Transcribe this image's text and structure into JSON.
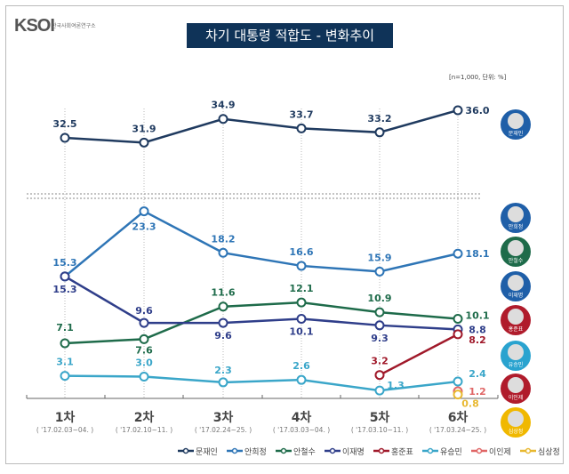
{
  "logo": {
    "text": "KSOI",
    "subtitle": "한국사회여론연구소"
  },
  "chart_data": {
    "type": "line",
    "title": "차기 대통령 적합도 - 변화추이",
    "note": "[n=1,000, 단위: %]",
    "categories": [
      "1차",
      "2차",
      "3차",
      "4차",
      "5차",
      "6차"
    ],
    "category_dates": [
      "( '17.02.03~04. )",
      "( '17.02.10~11. )",
      "( '17.02.24~25. )",
      "( '17.03.03~04. )",
      "( '17.03.10~11. )",
      "( '17.03.24~25. )"
    ],
    "axis_break": true,
    "series": [
      {
        "name": "문재인",
        "color": "#1f3a5f",
        "values": [
          32.5,
          31.9,
          34.9,
          33.7,
          33.2,
          36.0
        ]
      },
      {
        "name": "안희정",
        "color": "#2e75b6",
        "values": [
          15.3,
          23.3,
          18.2,
          16.6,
          15.9,
          18.1
        ]
      },
      {
        "name": "안철수",
        "color": "#1e6b4a",
        "values": [
          7.1,
          7.6,
          11.6,
          12.1,
          10.9,
          10.1
        ]
      },
      {
        "name": "이재명",
        "color": "#2f3e8a",
        "values": [
          15.3,
          9.6,
          9.6,
          10.1,
          9.3,
          8.8
        ]
      },
      {
        "name": "홍준표",
        "color": "#a0192a",
        "values": [
          null,
          null,
          null,
          null,
          3.2,
          8.2
        ]
      },
      {
        "name": "유승민",
        "color": "#3aa6c9",
        "values": [
          3.1,
          3.0,
          2.3,
          2.6,
          1.3,
          2.4
        ]
      },
      {
        "name": "이인제",
        "color": "#e06666",
        "values": [
          null,
          null,
          null,
          null,
          null,
          1.2
        ]
      },
      {
        "name": "심상정",
        "color": "#e8b830",
        "values": [
          null,
          null,
          null,
          null,
          null,
          0.8
        ]
      }
    ],
    "avatars": [
      {
        "name": "문재인",
        "color": "#1f5fa8"
      },
      {
        "name": "안희정",
        "color": "#1f5fa8"
      },
      {
        "name": "안철수",
        "color": "#1e6b4a"
      },
      {
        "name": "이재명",
        "color": "#1f5fa8"
      },
      {
        "name": "홍준표",
        "color": "#b01c2c"
      },
      {
        "name": "유승민",
        "color": "#2aa3cf"
      },
      {
        "name": "이인제",
        "color": "#b01c2c"
      },
      {
        "name": "심상정",
        "color": "#f0b800"
      }
    ]
  }
}
